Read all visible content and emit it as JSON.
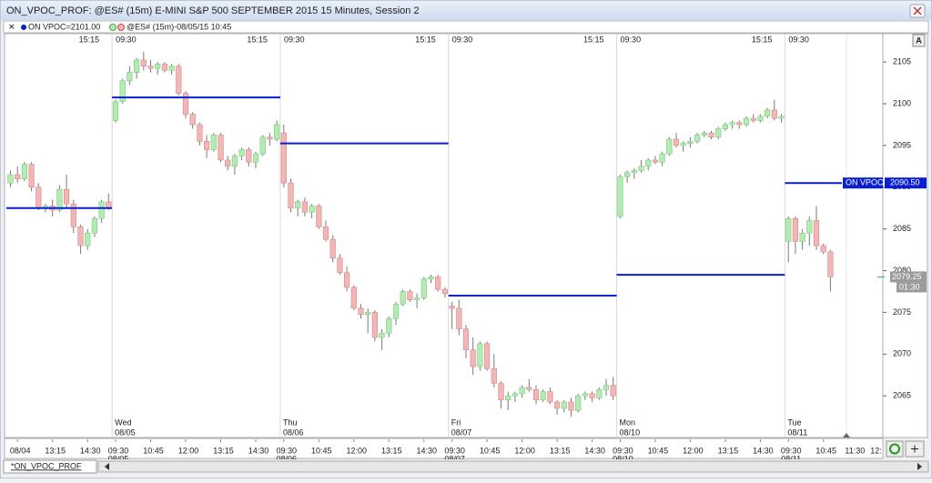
{
  "window": {
    "title": "ON_VPOC_PROF: @ES# (15m) E-MINI S&P 500 SEPTEMBER 2015 15 Minutes, Session 2",
    "tab": "*ON_VPOC_PROF"
  },
  "legend": [
    "ON VPOC=2101.00",
    "@ES# (15m)-08/05/15 10:45"
  ],
  "chart_data": {
    "type": "candlestick",
    "up_color": "#b3ecb3",
    "down_color": "#f2b6b6",
    "ylim": [
      2060,
      2108.4
    ],
    "yticks": [
      2065,
      2070,
      2075,
      2080,
      2085,
      2090,
      2095,
      2100,
      2105
    ],
    "categories": [
      null,
      "08/04",
      null,
      null,
      null,
      null,
      "13:15",
      null,
      null,
      null,
      null,
      "14:30",
      null,
      null,
      null,
      "09:30",
      null,
      null,
      null,
      null,
      "10:45",
      null,
      null,
      null,
      null,
      "12:00",
      null,
      null,
      null,
      null,
      "13:15",
      null,
      null,
      null,
      null,
      "14:30",
      null,
      null,
      null,
      "09:30",
      null,
      null,
      null,
      null,
      "10:45",
      null,
      null,
      null,
      null,
      "12:00",
      null,
      null,
      null,
      null,
      "13:15",
      null,
      null,
      null,
      null,
      "14:30",
      null,
      null,
      null,
      "09:30",
      null,
      null,
      null,
      null,
      "10:45",
      null,
      null,
      null,
      null,
      "12:00",
      null,
      null,
      null,
      null,
      "13:15",
      null,
      null,
      null,
      null,
      "14:30",
      null,
      null,
      null,
      "09:30",
      null,
      null,
      null,
      null,
      "10:45",
      null,
      null,
      null,
      null,
      "12:00",
      null,
      null,
      null,
      null,
      "13:15",
      null,
      null,
      null,
      null,
      "14:30",
      null,
      null,
      null,
      "09:30",
      null,
      null,
      null,
      null,
      "10:45",
      null
    ],
    "future_ticks": [
      "11:30",
      "12:"
    ],
    "top_labels": [
      "15:15",
      "09:30",
      "15:15",
      "09:30",
      "15:15",
      "09:30",
      "15:15",
      "09:30",
      "15:15",
      "09:30"
    ],
    "sessions": [
      {
        "date": "08/04"
      },
      {
        "day": "Wed",
        "date": "08/05"
      },
      {
        "day": "Thu",
        "date": "08/06"
      },
      {
        "day": "Fri",
        "date": "08/07"
      },
      {
        "day": "Mon",
        "date": "08/10"
      },
      {
        "day": "Tue",
        "date": "08/11"
      }
    ],
    "candles": [
      [
        2090.5,
        2092,
        2090,
        2091.5
      ],
      [
        2091.5,
        2092.5,
        2090.5,
        2091
      ],
      [
        2091,
        2093,
        2090.75,
        2092.75
      ],
      [
        2092.75,
        2093,
        2089.5,
        2090
      ],
      [
        2090,
        2090.5,
        2087.25,
        2087.5
      ],
      [
        2087.5,
        2088,
        2087,
        2087.75
      ],
      [
        2087.75,
        2088.5,
        2086.5,
        2087.25
      ],
      [
        2087.25,
        2090.25,
        2087,
        2089.75
      ],
      [
        2089.75,
        2091.5,
        2087.5,
        2088
      ],
      [
        2088,
        2088.5,
        2084.5,
        2085.25
      ],
      [
        2085.25,
        2085.5,
        2082,
        2083
      ],
      [
        2083,
        2085,
        2082.5,
        2084.5
      ],
      [
        2084.5,
        2086.5,
        2084,
        2086.25
      ],
      [
        2086.25,
        2088.5,
        2085.75,
        2088.25
      ],
      [
        2088.25,
        2089.25,
        2087.25,
        2087.5
      ],
      [
        2098,
        2100.5,
        2097.75,
        2100.25
      ],
      [
        2100.25,
        2103,
        2100,
        2102.75
      ],
      [
        2102.75,
        2104.5,
        2102.25,
        2103.75
      ],
      [
        2103.75,
        2105.5,
        2103,
        2105.25
      ],
      [
        2105.25,
        2106.25,
        2104,
        2104.5
      ],
      [
        2104.5,
        2105.25,
        2103.75,
        2104.25
      ],
      [
        2104.25,
        2105,
        2103.5,
        2104.75
      ],
      [
        2104.75,
        2105,
        2103.75,
        2104
      ],
      [
        2104,
        2104.75,
        2103.5,
        2104.5
      ],
      [
        2104.5,
        2104.75,
        2101,
        2101.25
      ],
      [
        2101.25,
        2101.5,
        2098.25,
        2098.75
      ],
      [
        2098.75,
        2099,
        2097,
        2097.5
      ],
      [
        2097.5,
        2097.75,
        2095,
        2095.5
      ],
      [
        2095.5,
        2096.25,
        2093.5,
        2094.5
      ],
      [
        2094.5,
        2096.5,
        2094.25,
        2096.25
      ],
      [
        2096.25,
        2096.5,
        2093,
        2093.25
      ],
      [
        2093.25,
        2093.75,
        2092,
        2092.5
      ],
      [
        2092.5,
        2094,
        2091.5,
        2093.75
      ],
      [
        2093.75,
        2094.75,
        2093.25,
        2094.5
      ],
      [
        2094.5,
        2094.75,
        2092.5,
        2093
      ],
      [
        2093,
        2094.25,
        2092.25,
        2094
      ],
      [
        2094,
        2096.25,
        2093.75,
        2096
      ],
      [
        2096,
        2096.5,
        2095,
        2095.75
      ],
      [
        2095.75,
        2098,
        2095.5,
        2097.5
      ],
      [
        2096.5,
        2097.5,
        2090,
        2090.5
      ],
      [
        2090.5,
        2091,
        2087,
        2087.5
      ],
      [
        2087.5,
        2088.5,
        2086.5,
        2088.25
      ],
      [
        2088.25,
        2088.75,
        2086.5,
        2087
      ],
      [
        2087,
        2088,
        2086.25,
        2087.75
      ],
      [
        2087.75,
        2088,
        2085,
        2085.25
      ],
      [
        2085.25,
        2086,
        2083.5,
        2083.75
      ],
      [
        2083.75,
        2084.25,
        2081,
        2081.5
      ],
      [
        2081.5,
        2082,
        2079.5,
        2079.75
      ],
      [
        2079.75,
        2080.5,
        2077.5,
        2078
      ],
      [
        2078,
        2078.25,
        2075.25,
        2075.5
      ],
      [
        2075.5,
        2076,
        2074.25,
        2074.75
      ],
      [
        2074.75,
        2075.5,
        2072.5,
        2075
      ],
      [
        2075,
        2075.25,
        2071.5,
        2072
      ],
      [
        2072,
        2073,
        2070.5,
        2072.5
      ],
      [
        2072.5,
        2074.5,
        2072,
        2074.25
      ],
      [
        2074.25,
        2076.25,
        2073.5,
        2076
      ],
      [
        2076,
        2077.75,
        2075.75,
        2077.5
      ],
      [
        2077.5,
        2077.75,
        2076.25,
        2076.5
      ],
      [
        2076.5,
        2077.25,
        2075.5,
        2076.75
      ],
      [
        2076.75,
        2079.25,
        2076.5,
        2079
      ],
      [
        2079,
        2079.5,
        2078.5,
        2079.25
      ],
      [
        2079.25,
        2079.5,
        2077.5,
        2077.75
      ],
      [
        2077.75,
        2078,
        2076.75,
        2077.25
      ],
      [
        2075.75,
        2076.25,
        2073,
        2075.5
      ],
      [
        2075.5,
        2076.5,
        2072.25,
        2073
      ],
      [
        2073,
        2073.5,
        2069.5,
        2070.5
      ],
      [
        2070.5,
        2072,
        2067.5,
        2068.5
      ],
      [
        2068.5,
        2071.5,
        2068,
        2071.25
      ],
      [
        2071.25,
        2071.5,
        2068,
        2068.25
      ],
      [
        2068.25,
        2070,
        2066,
        2066.5
      ],
      [
        2066.5,
        2066.75,
        2063.5,
        2064.5
      ],
      [
        2064.5,
        2065.5,
        2063.25,
        2065
      ],
      [
        2065,
        2065.5,
        2064.25,
        2065.25
      ],
      [
        2065.25,
        2066.25,
        2064.75,
        2066
      ],
      [
        2066,
        2067,
        2065.5,
        2065.75
      ],
      [
        2065.75,
        2066.25,
        2064,
        2064.5
      ],
      [
        2064.5,
        2065.75,
        2064.25,
        2065.5
      ],
      [
        2065.5,
        2066,
        2064,
        2064.25
      ],
      [
        2064.25,
        2064.5,
        2062.75,
        2063.5
      ],
      [
        2063.5,
        2064.5,
        2063,
        2064.25
      ],
      [
        2064.25,
        2064.75,
        2062.5,
        2063.25
      ],
      [
        2063.25,
        2065.25,
        2063,
        2065
      ],
      [
        2065,
        2065.5,
        2064.5,
        2065.25
      ],
      [
        2065.25,
        2065.5,
        2064.25,
        2064.75
      ],
      [
        2064.75,
        2066,
        2064.5,
        2065.75
      ],
      [
        2065.75,
        2067,
        2065,
        2066.25
      ],
      [
        2066.25,
        2067.25,
        2064.5,
        2065
      ],
      [
        2086.5,
        2091.5,
        2086.25,
        2091.25
      ],
      [
        2091.25,
        2092,
        2090.5,
        2091.75
      ],
      [
        2091.75,
        2092.25,
        2091,
        2092
      ],
      [
        2092,
        2093.25,
        2091.75,
        2092.5
      ],
      [
        2092.5,
        2093.5,
        2092,
        2093.25
      ],
      [
        2093.25,
        2093.75,
        2092.75,
        2093
      ],
      [
        2093,
        2094.25,
        2092.5,
        2094
      ],
      [
        2094,
        2096,
        2093.75,
        2095.75
      ],
      [
        2095.75,
        2096.5,
        2094.75,
        2095
      ],
      [
        2095,
        2095.5,
        2094.25,
        2095.25
      ],
      [
        2095.25,
        2096,
        2094.75,
        2095.5
      ],
      [
        2095.5,
        2096.5,
        2095.25,
        2096.25
      ],
      [
        2096.25,
        2096.75,
        2096,
        2096.5
      ],
      [
        2096.5,
        2096.75,
        2095.75,
        2096
      ],
      [
        2096,
        2097.25,
        2095.75,
        2097
      ],
      [
        2097,
        2097.75,
        2096.75,
        2097.5
      ],
      [
        2097.5,
        2098,
        2097,
        2097.75
      ],
      [
        2097.75,
        2098,
        2097,
        2097.5
      ],
      [
        2097.5,
        2098.5,
        2097.25,
        2098.25
      ],
      [
        2098.25,
        2098.75,
        2097.75,
        2098
      ],
      [
        2098,
        2098.75,
        2097.75,
        2098.5
      ],
      [
        2098.5,
        2099.5,
        2098.25,
        2099.25
      ],
      [
        2099.25,
        2100.5,
        2098,
        2098.25
      ],
      [
        2098.25,
        2098.75,
        2097.75,
        2098.5
      ],
      [
        2083.5,
        2086.5,
        2081,
        2086.25
      ],
      [
        2086.25,
        2086.5,
        2082,
        2083.5
      ],
      [
        2083.5,
        2085,
        2082.5,
        2084.5
      ],
      [
        2084.5,
        2086.5,
        2083,
        2086
      ],
      [
        2086,
        2087.75,
        2082.5,
        2083
      ],
      [
        2083,
        2083.25,
        2082,
        2082.25
      ],
      [
        2082.25,
        2082.5,
        2077.5,
        2079.25
      ]
    ],
    "vpoc": {
      "name": "ON VPOC",
      "color": "#0a1ed2",
      "values": [
        2087.5,
        2100.75,
        2095.25,
        2077,
        2079.5,
        2090.5
      ],
      "last_label": "2090.50"
    },
    "last_price": {
      "value": 2079.25,
      "label": "2079.25"
    },
    "last_time": "01:30"
  }
}
